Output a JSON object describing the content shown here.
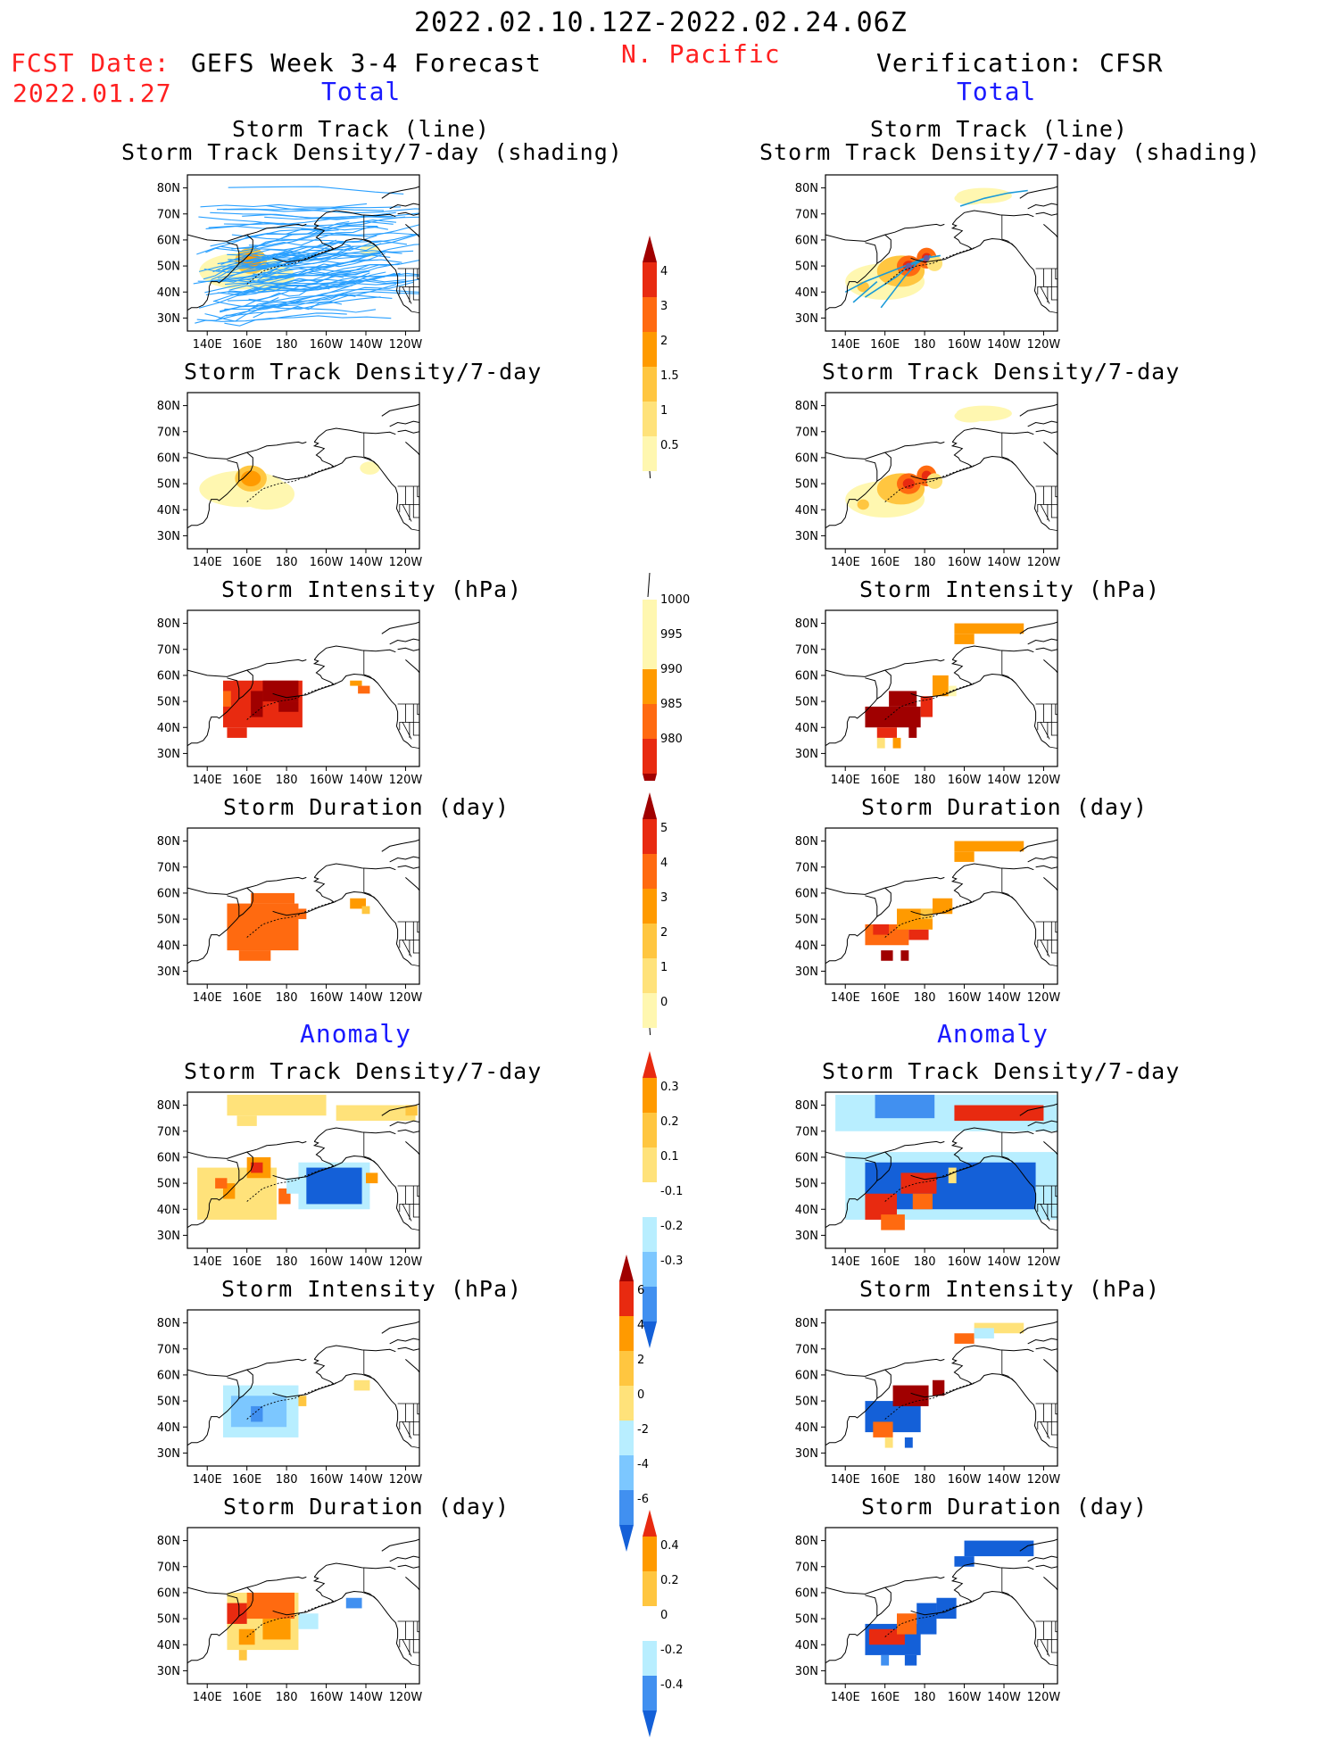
{
  "header": {
    "date_range": "2022.02.10.12Z-2022.02.24.06Z",
    "region": "N. Pacific",
    "fcst_label": "FCST Date:",
    "fcst_date": "2022.01.27",
    "left_title": "GEFS Week 3-4 Forecast",
    "right_title": "Verification: CFSR",
    "total_label": "Total",
    "anomaly_label": "Anomaly"
  },
  "axes": {
    "lat_ticks": [
      "80N",
      "70N",
      "60N",
      "50N",
      "40N",
      "30N"
    ],
    "lon_ticks": [
      "140E",
      "160E",
      "180",
      "160W",
      "140W",
      "120W"
    ]
  },
  "panel_titles": {
    "track_line": "Storm Track (line)",
    "track_shading": "Storm Track Density/7-day (shading)",
    "density": "Storm Track Density/7-day",
    "intensity": "Storm Intensity (hPa)",
    "duration": "Storm Duration (day)"
  },
  "colorbars": {
    "density_total": [
      "4",
      "3",
      "2",
      "1.5",
      "1",
      "0.5"
    ],
    "intensity_total": [
      "1000",
      "995",
      "990",
      "985",
      "980"
    ],
    "duration_total": [
      "5",
      "4",
      "3",
      "2",
      "1",
      "0"
    ],
    "density_anom": [
      "0.3",
      "0.2",
      "0.1",
      "-0.1",
      "-0.2",
      "-0.3"
    ],
    "intensity_anom": [
      "6",
      "4",
      "2",
      "0",
      "-2",
      "-4",
      "-6"
    ],
    "duration_anom": [
      "0.4",
      "0.2",
      "0",
      "-0.2",
      "-0.4"
    ]
  },
  "colors": {
    "yellow_light": "#fff7b0",
    "yellow": "#ffe27a",
    "gold": "#ffc640",
    "orange": "#ff9a00",
    "orange_red": "#ff6a10",
    "red": "#e82a10",
    "dark_red": "#a00000",
    "light_blue": "#b8eeff",
    "sky_blue": "#7cc7ff",
    "mid_blue": "#4190f0",
    "deep_blue": "#1460d8",
    "track_line": "#2aa0ff",
    "track_line_cfsr": "#1a9ad8"
  }
}
